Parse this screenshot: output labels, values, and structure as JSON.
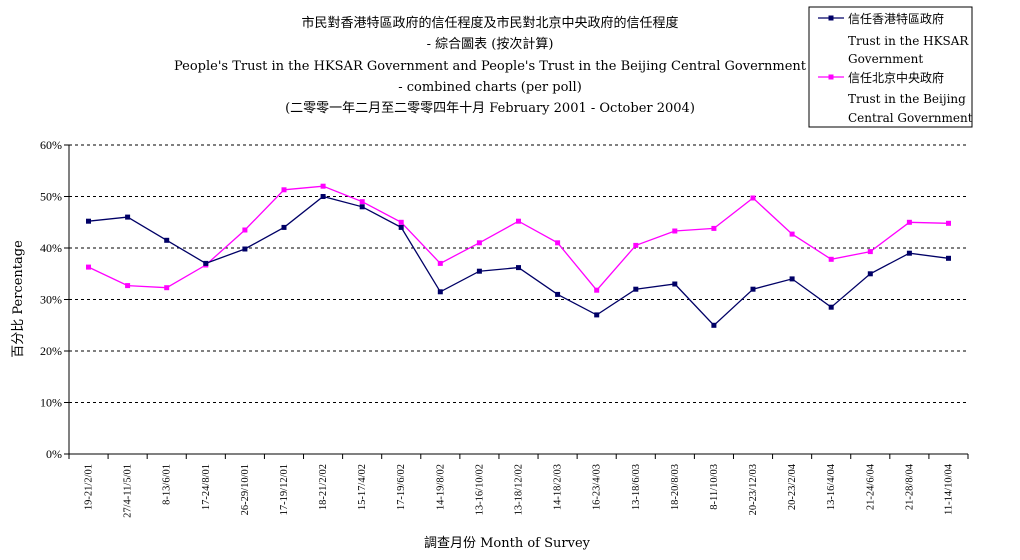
{
  "chart_data": {
    "type": "line",
    "title_lines": [
      "市民對香港特區政府的信任程度及市民對北京中央政府的信任程度",
      "- 綜合圖表 (按次計算)",
      "People's Trust in the HKSAR Government and People's Trust in the Beijing Central Government",
      "- combined charts (per poll)",
      "(二零零一年二月至二零零四年十月 February 2001 - October 2004)"
    ],
    "xlabel": "調查月份 Month of Survey",
    "ylabel": "百分比 Percentage",
    "ylim": [
      0,
      60
    ],
    "yticks": [
      "0%",
      "10%",
      "20%",
      "30%",
      "40%",
      "50%",
      "60%"
    ],
    "grid": "horizontal dashed",
    "legend_position": "top-right",
    "categories": [
      "19-21/2/01",
      "27/4-11/5/01",
      "8-13/6/01",
      "17-24/8/01",
      "26-29/10/01",
      "17-19/12/01",
      "18-21/2/02",
      "15-17/4/02",
      "17-19/6/02",
      "14-19/8/02",
      "13-16/10/02",
      "13-18/12/02",
      "14-18/2/03",
      "16-23/4/03",
      "13-18/6/03",
      "18-20/8/03",
      "8-11/10/03",
      "20-23/12/03",
      "20-23/2/04",
      "13-16/4/04",
      "21-24/6/04",
      "21-28/8/04",
      "11-14/10/04"
    ],
    "series": [
      {
        "name": "信任香港特區政府 Trust in the HKSAR Government",
        "name_zh": "信任香港特區政府",
        "name_en_lines": [
          "Trust in the HKSAR",
          "Government"
        ],
        "color": "#000066",
        "marker": "square",
        "values": [
          45.2,
          46.0,
          41.5,
          37.0,
          39.8,
          44.0,
          50.0,
          48.0,
          44.0,
          31.5,
          35.5,
          36.2,
          31.0,
          27.0,
          32.0,
          33.0,
          25.0,
          32.0,
          34.0,
          28.5,
          35.0,
          39.0,
          38.0
        ]
      },
      {
        "name": "信任北京中央政府 Trust in the Beijing Central Government",
        "name_zh": "信任北京中央政府",
        "name_en_lines": [
          "Trust in the Beijing",
          "Central Government"
        ],
        "color": "#ff00ff",
        "marker": "square",
        "values": [
          36.3,
          32.7,
          32.3,
          36.7,
          43.5,
          51.3,
          52.0,
          49.0,
          45.0,
          37.0,
          41.0,
          45.2,
          41.0,
          31.8,
          40.5,
          43.3,
          43.8,
          49.7,
          42.7,
          37.8,
          39.3,
          45.0,
          44.8
        ]
      }
    ]
  }
}
